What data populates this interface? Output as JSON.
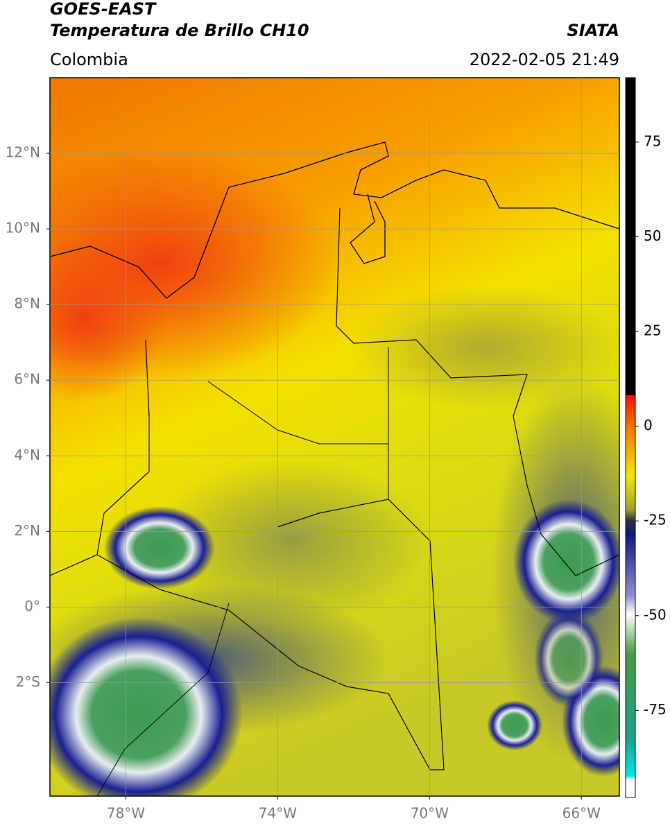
{
  "header": {
    "title_line1": "GOES-EAST",
    "title_line2": "Temperatura de Brillo CH10",
    "source": "SIATA",
    "region": "Colombia",
    "datetime": "2022-02-05 21:49"
  },
  "map": {
    "xlim": [
      -80,
      -65
    ],
    "ylim": [
      -5,
      14
    ],
    "grid": true,
    "xticks": [
      {
        "value": -78,
        "label": "78°W"
      },
      {
        "value": -74,
        "label": "74°W"
      },
      {
        "value": -70,
        "label": "70°W"
      },
      {
        "value": -66,
        "label": "66°W"
      }
    ],
    "yticks": [
      {
        "value": 12,
        "label": "12°N"
      },
      {
        "value": 10,
        "label": "10°N"
      },
      {
        "value": 8,
        "label": "8°N"
      },
      {
        "value": 6,
        "label": "6°N"
      },
      {
        "value": 4,
        "label": "4°N"
      },
      {
        "value": 2,
        "label": "2°N"
      },
      {
        "value": 0,
        "label": "0°"
      },
      {
        "value": -2,
        "label": "2°S"
      }
    ]
  },
  "colorbar": {
    "lim": [
      -98,
      92
    ],
    "ticks": [
      75,
      50,
      25,
      0,
      -25,
      -50,
      -75
    ]
  }
}
